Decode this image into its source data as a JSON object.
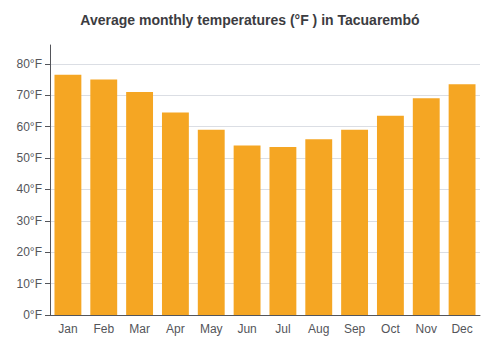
{
  "chart_data": {
    "type": "bar",
    "title": "Average monthly temperatures (°F ) in Tacuarembó",
    "categories": [
      "Jan",
      "Feb",
      "Mar",
      "Apr",
      "May",
      "Jun",
      "Jul",
      "Aug",
      "Sep",
      "Oct",
      "Nov",
      "Dec"
    ],
    "values": [
      76.5,
      75.0,
      71.0,
      64.5,
      59.0,
      54.0,
      53.5,
      56.0,
      59.0,
      63.5,
      69.0,
      73.5
    ],
    "color": "#F5A623",
    "ylim": [
      0,
      86
    ],
    "yticks": [
      {
        "value": 0,
        "label": "0°F"
      },
      {
        "value": 10,
        "label": "10°F"
      },
      {
        "value": 20,
        "label": "20°F"
      },
      {
        "value": 30,
        "label": "30°F"
      },
      {
        "value": 40,
        "label": "40°F"
      },
      {
        "value": 50,
        "label": "50°F"
      },
      {
        "value": 60,
        "label": "60°F"
      },
      {
        "value": 70,
        "label": "70°F"
      },
      {
        "value": 80,
        "label": "80°F"
      }
    ],
    "grid": true
  }
}
